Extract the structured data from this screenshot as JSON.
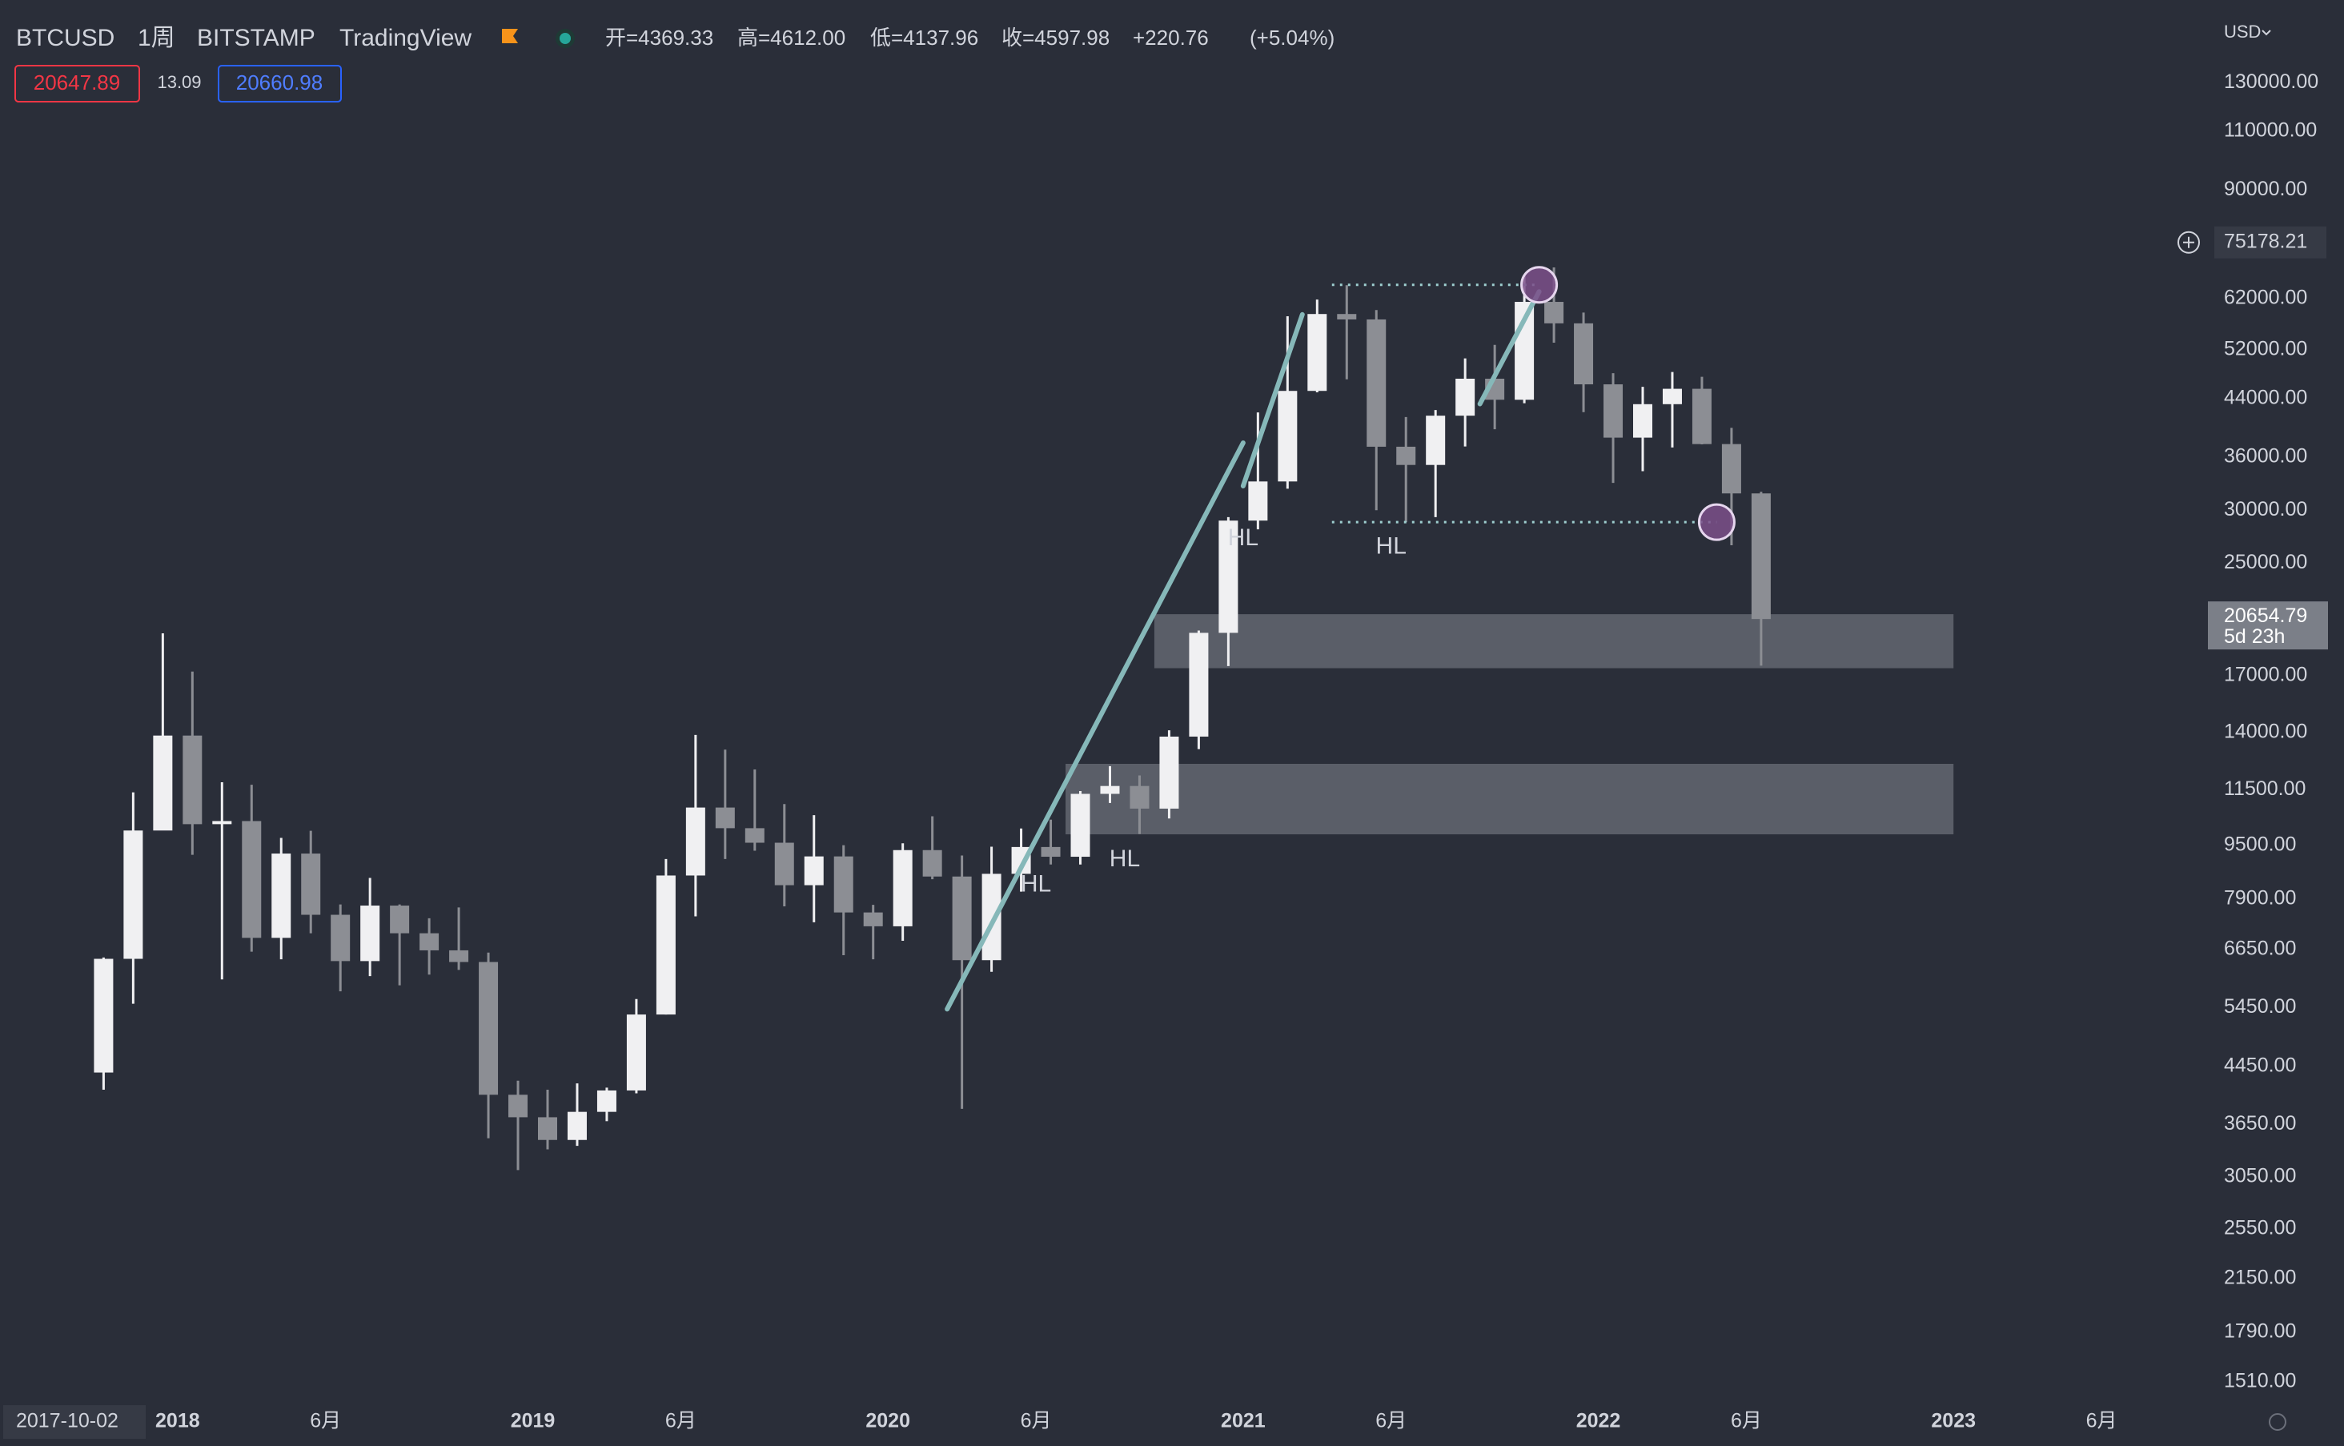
{
  "chart_data": {
    "type": "candlestick",
    "title": "BTCUSD",
    "interval": "1周",
    "exchange": "BITSTAMP",
    "source": "TradingView",
    "ohlc_legend": [
      {
        "value": 4369.33,
        "label": "开=4369.33"
      },
      {
        "value": 4612.0,
        "label": "高=4612.00"
      },
      {
        "value": 4137.96,
        "label": "低=4137.96"
      },
      {
        "value": 4597.98,
        "label": "收=4597.98"
      },
      {
        "value": 220.76,
        "label": "+220.76"
      },
      {
        "value": 5.04,
        "label": "(+5.04%)"
      }
    ],
    "bid": 20647.89,
    "spread": 13.09,
    "ask": 20660.98,
    "currency": "USD",
    "crosshair_price": 75178.21,
    "last_price": 20654.79,
    "countdown": "5d 23h",
    "cursor_date": "2017-10-02",
    "log_scale": true,
    "up_color": "#f0f0f2",
    "down_color": "#8c8e94",
    "x": [
      "2017-10",
      "2017-11",
      "2017-12",
      "2018-01",
      "2018-02",
      "2018-03",
      "2018-04",
      "2018-05",
      "2018-06",
      "2018-07",
      "2018-08",
      "2018-09",
      "2018-10",
      "2018-11",
      "2018-12",
      "2019-01",
      "2019-02",
      "2019-03",
      "2019-04",
      "2019-05",
      "2019-06",
      "2019-07",
      "2019-08",
      "2019-09",
      "2019-10",
      "2019-11",
      "2019-12",
      "2020-01",
      "2020-02",
      "2020-03",
      "2020-04",
      "2020-05",
      "2020-06",
      "2020-07",
      "2020-08",
      "2020-09",
      "2020-10",
      "2020-11",
      "2020-12",
      "2021-01",
      "2021-02",
      "2021-03",
      "2021-04",
      "2021-05",
      "2021-06",
      "2021-07",
      "2021-08",
      "2021-09",
      "2021-10",
      "2021-11",
      "2021-12",
      "2022-01",
      "2022-02",
      "2022-03",
      "2022-04",
      "2022-05",
      "2022-06"
    ],
    "open": [
      4360,
      6440,
      10000,
      13850,
      10220,
      10330,
      6920,
      9240,
      7490,
      6390,
      7730,
      7030,
      6630,
      6370,
      4040,
      3740,
      3460,
      3810,
      4100,
      5320,
      8570,
      10820,
      10080,
      9590,
      8290,
      9150,
      7550,
      7200,
      9350,
      8540,
      6410,
      8620,
      9450,
      9140,
      11340,
      11650,
      10780,
      13800,
      19700,
      28950,
      33110,
      45170,
      58800,
      57720,
      37300,
      35040,
      41490,
      47100,
      43820,
      61300,
      56950,
      46200,
      38480,
      43160,
      45500,
      37640,
      31780
    ],
    "high": [
      6470,
      11400,
      19670,
      17250,
      11800,
      11700,
      9750,
      9990,
      7760,
      8500,
      7760,
      7400,
      7680,
      6580,
      4240,
      4110,
      4200,
      4140,
      5610,
      9070,
      13880,
      13200,
      12330,
      10950,
      10540,
      9510,
      7750,
      9570,
      10500,
      9180,
      9460,
      10070,
      10380,
      11450,
      12470,
      12080,
      14100,
      19860,
      29300,
      41950,
      58350,
      61800,
      64900,
      59600,
      41300,
      42300,
      50500,
      52900,
      67000,
      69000,
      59100,
      47990,
      45800,
      48200,
      47400,
      39800,
      31950
    ],
    "low": [
      4110,
      5520,
      10900,
      9200,
      6000,
      6600,
      6430,
      7030,
      5760,
      6070,
      5880,
      6100,
      6200,
      3480,
      3120,
      3350,
      3390,
      3690,
      4060,
      5320,
      7450,
      9070,
      9330,
      7710,
      7300,
      6520,
      6430,
      6850,
      8460,
      3850,
      6160,
      8110,
      8900,
      8900,
      10990,
      9880,
      10420,
      13220,
      17580,
      28100,
      32300,
      44950,
      47000,
      30000,
      28800,
      29300,
      37330,
      39600,
      43300,
      53300,
      42000,
      32950,
      34300,
      37200,
      37600,
      26600,
      17600
    ],
    "close": [
      6440,
      10000,
      13850,
      10220,
      10330,
      6920,
      9240,
      7490,
      6390,
      7730,
      7030,
      6630,
      6370,
      4040,
      3740,
      3460,
      3810,
      4100,
      5320,
      8570,
      10820,
      10080,
      9590,
      8290,
      9150,
      7550,
      7200,
      9350,
      8540,
      6410,
      8620,
      9450,
      9140,
      11340,
      11650,
      10780,
      13800,
      19700,
      28950,
      33110,
      45170,
      58800,
      57720,
      37300,
      35040,
      41490,
      47100,
      43820,
      61300,
      56950,
      46200,
      38480,
      43160,
      45500,
      37640,
      31780,
      20655
    ],
    "xlim": [
      "2017-07",
      "2023-09"
    ],
    "xticks": [
      {
        "value": "2018-01",
        "label": "2018"
      },
      {
        "value": "2018-06",
        "label": "6月"
      },
      {
        "value": "2019-01",
        "label": "2019"
      },
      {
        "value": "2019-06",
        "label": "6月"
      },
      {
        "value": "2020-01",
        "label": "2020"
      },
      {
        "value": "2020-06",
        "label": "6月"
      },
      {
        "value": "2021-01",
        "label": "2021"
      },
      {
        "value": "2021-06",
        "label": "6月"
      },
      {
        "value": "2022-01",
        "label": "2022"
      },
      {
        "value": "2022-06",
        "label": "6月"
      },
      {
        "value": "2023-01",
        "label": "2023"
      },
      {
        "value": "2023-06",
        "label": "6月"
      }
    ],
    "ylim": [
      1428,
      164000
    ],
    "yticks": [
      {
        "value": 130000,
        "label": "130000.00"
      },
      {
        "value": 110000,
        "label": "110000.00"
      },
      {
        "value": 90000,
        "label": "90000.00"
      },
      {
        "value": 62000,
        "label": "62000.00"
      },
      {
        "value": 52000,
        "label": "52000.00"
      },
      {
        "value": 44000,
        "label": "44000.00"
      },
      {
        "value": 36000,
        "label": "36000.00"
      },
      {
        "value": 30000,
        "label": "30000.00"
      },
      {
        "value": 25000,
        "label": "25000.00"
      },
      {
        "value": 17000,
        "label": "17000.00"
      },
      {
        "value": 14000,
        "label": "14000.00"
      },
      {
        "value": 11500,
        "label": "11500.00"
      },
      {
        "value": 9500,
        "label": "9500.00"
      },
      {
        "value": 7900,
        "label": "7900.00"
      },
      {
        "value": 6650,
        "label": "6650.00"
      },
      {
        "value": 5450,
        "label": "5450.00"
      },
      {
        "value": 4450,
        "label": "4450.00"
      },
      {
        "value": 3650,
        "label": "3650.00"
      },
      {
        "value": 3050,
        "label": "3050.00"
      },
      {
        "value": 2550,
        "label": "2550.00"
      },
      {
        "value": 2150,
        "label": "2150.00"
      },
      {
        "value": 1790,
        "label": "1790.00"
      },
      {
        "value": 1510,
        "label": "1510.00"
      }
    ],
    "zones": [
      {
        "x": [
          "2020-10",
          "2023-01"
        ],
        "low": 17450,
        "high": 21000
      },
      {
        "x": [
          "2020-07",
          "2023-01"
        ],
        "low": 9870,
        "high": 12570
      }
    ],
    "zone_color": "#9598a1",
    "trend_lines": [
      {
        "x": [
          "2020-03",
          "2021-01"
        ],
        "y": [
          5420,
          37800
        ]
      },
      {
        "x": [
          "2021-01",
          "2021-03"
        ],
        "y": [
          32600,
          58700
        ]
      },
      {
        "x": [
          "2021-09",
          "2021-11"
        ],
        "y": [
          43200,
          63500
        ]
      }
    ],
    "trend_color": "#86b8b9",
    "levels": [
      {
        "x": [
          "2021-04",
          "2021-11"
        ],
        "y": 65000
      },
      {
        "x": [
          "2021-04",
          "2022-05"
        ],
        "y": 28800
      }
    ],
    "markers": [
      {
        "x": "2021-11",
        "y": 65000
      },
      {
        "x": "2022-05",
        "y": 28800
      }
    ],
    "labels": [
      {
        "text": "HL",
        "x": "2021-01",
        "y": 27200
      },
      {
        "text": "HL",
        "x": "2021-06",
        "y": 26400
      },
      {
        "text": "HL",
        "x": "2020-06",
        "y": 8290
      },
      {
        "text": "HL",
        "x": "2020-09",
        "y": 9040
      }
    ]
  }
}
